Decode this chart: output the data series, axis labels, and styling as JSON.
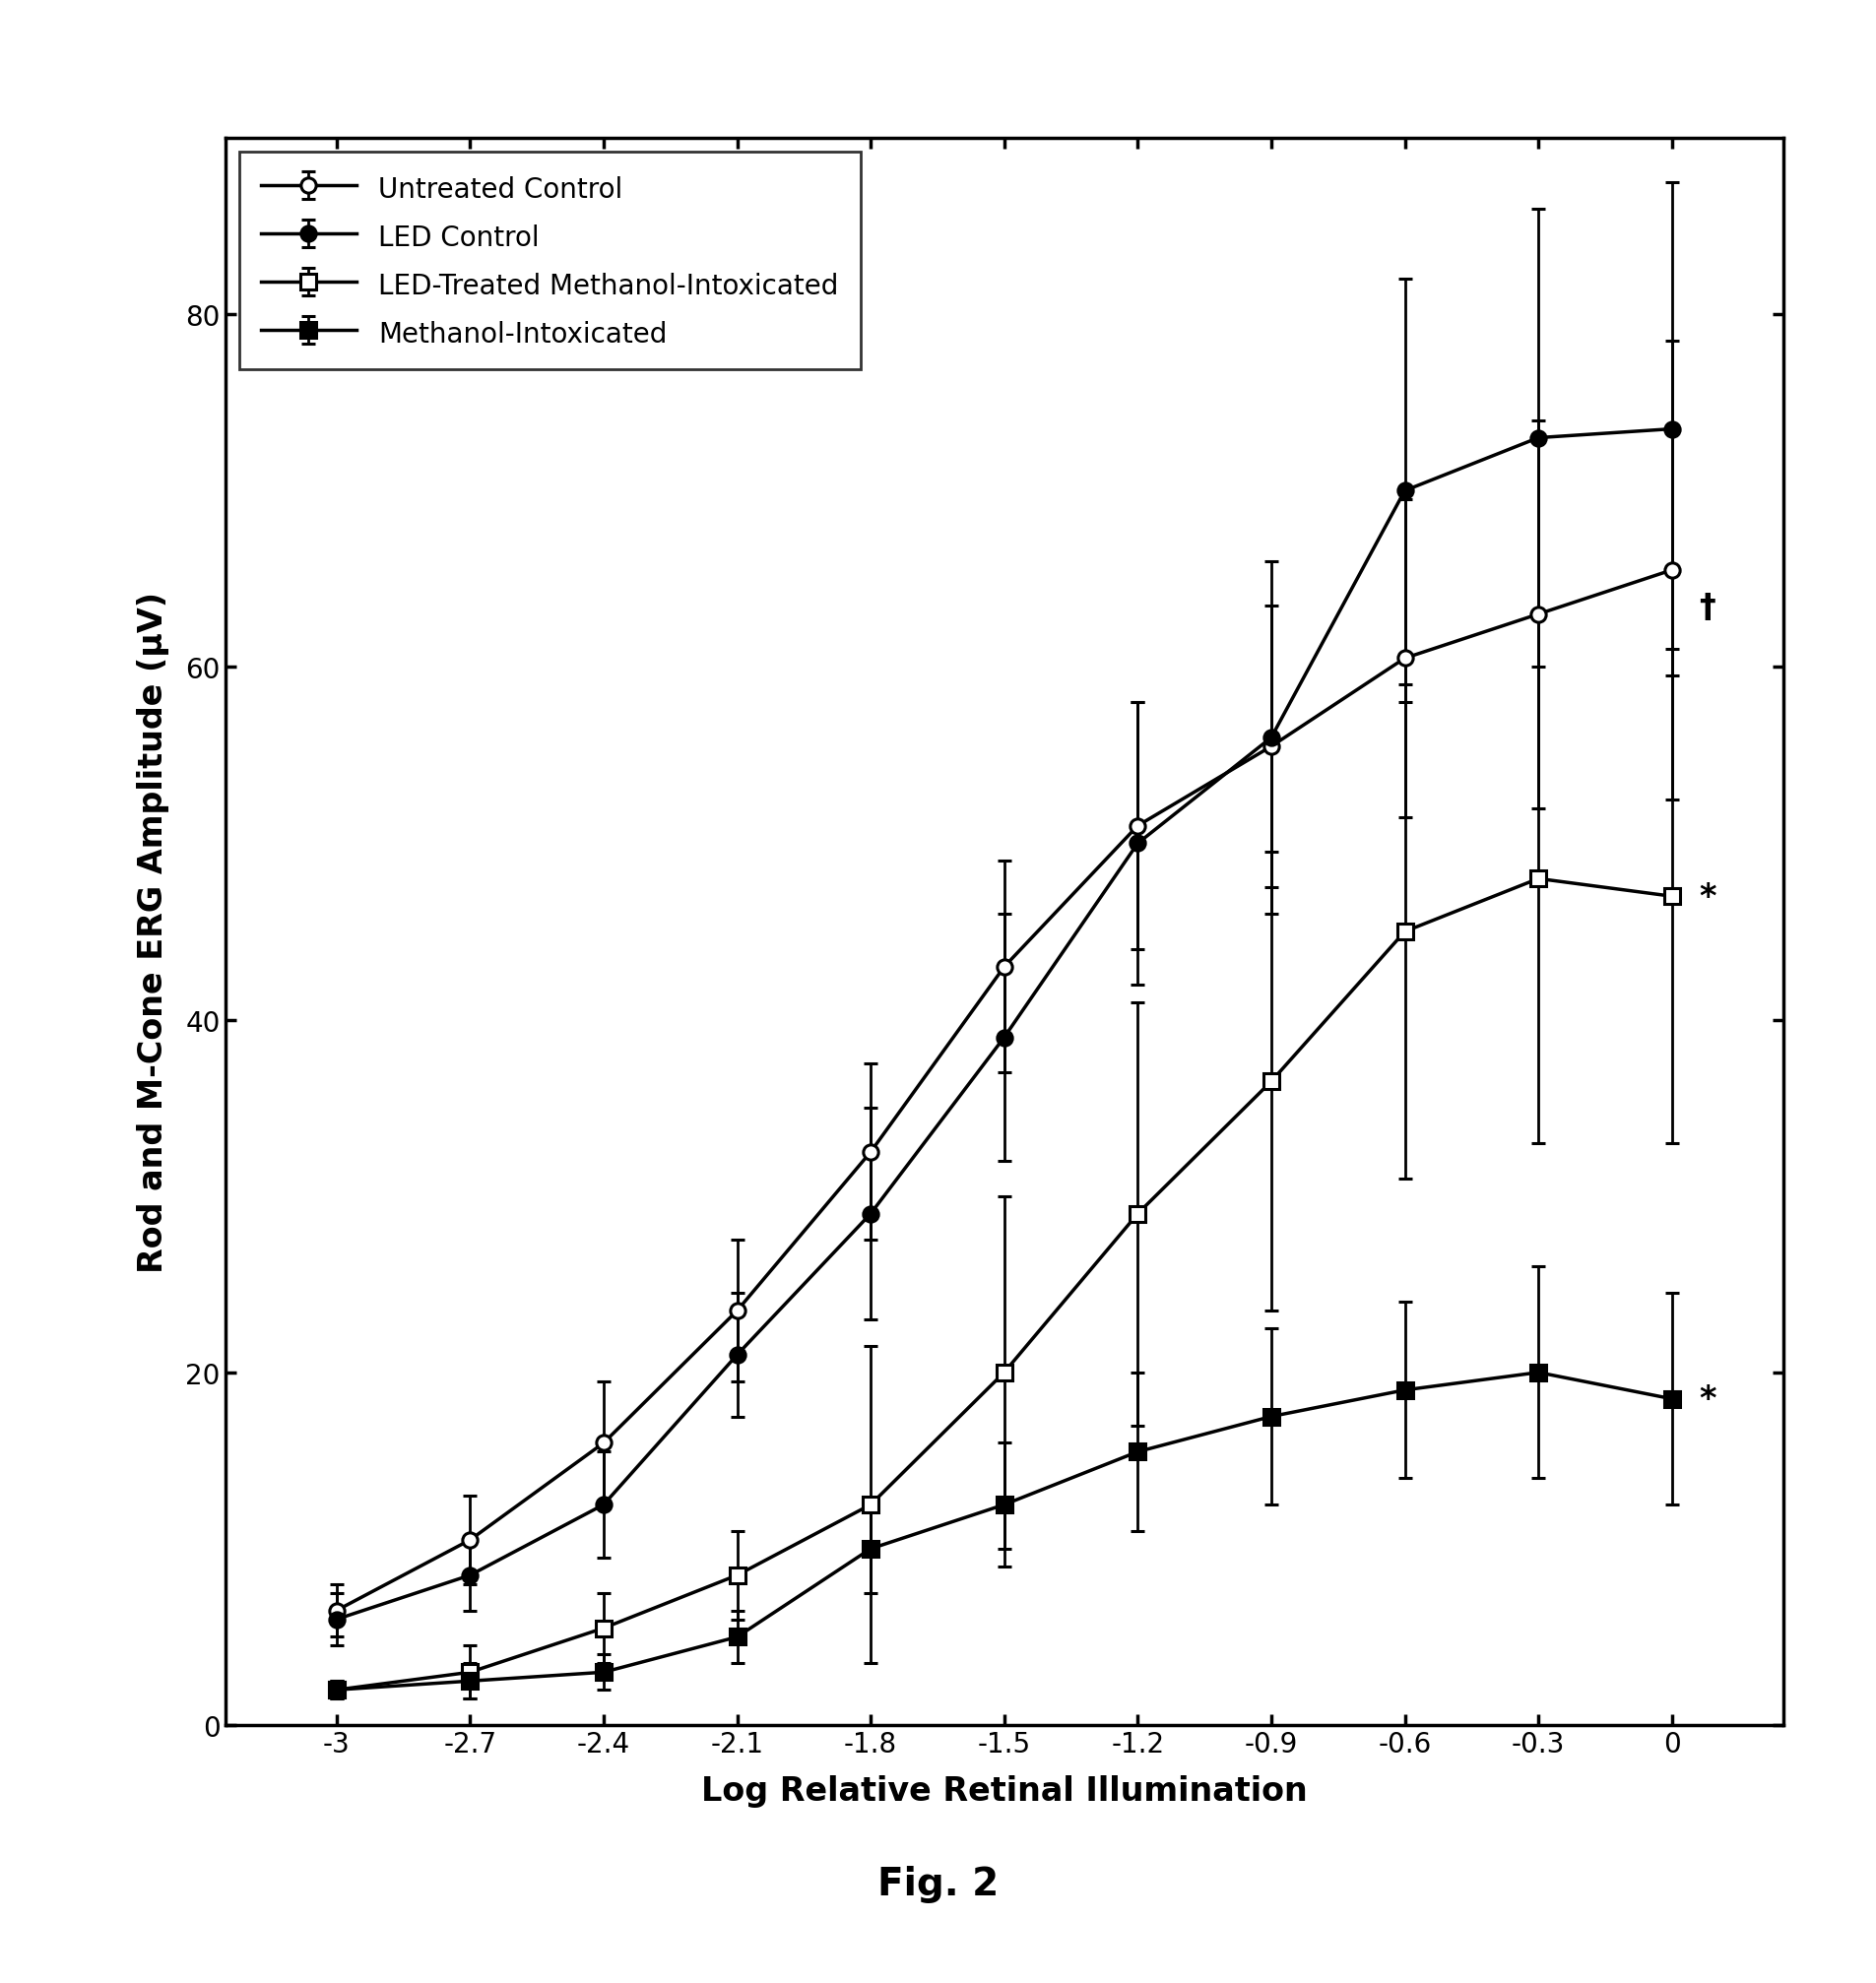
{
  "x": [
    -3,
    -2.7,
    -2.4,
    -2.1,
    -1.8,
    -1.5,
    -1.2,
    -0.9,
    -0.6,
    -0.3,
    0
  ],
  "untreated_control": {
    "y": [
      6.5,
      10.5,
      16,
      23.5,
      32.5,
      43,
      51,
      55.5,
      60.5,
      63,
      65.5
    ],
    "yerr": [
      1.5,
      2.5,
      3.5,
      4,
      5,
      6,
      7,
      8,
      9,
      11,
      13
    ],
    "label": "Untreated Control",
    "marker": "o",
    "fillstyle": "none"
  },
  "led_control": {
    "y": [
      6.0,
      8.5,
      12.5,
      21,
      29,
      39,
      50,
      56,
      70,
      73,
      73.5
    ],
    "yerr": [
      1.5,
      2.0,
      3.0,
      3.5,
      6,
      7,
      8,
      10,
      12,
      13,
      14
    ],
    "label": "LED Control",
    "marker": "o",
    "fillstyle": "full"
  },
  "led_treated_methanol": {
    "y": [
      2.0,
      3.0,
      5.5,
      8.5,
      12.5,
      20,
      29,
      36.5,
      45,
      48,
      47
    ],
    "yerr": [
      0.5,
      1.5,
      2.0,
      2.5,
      9,
      10,
      12,
      13,
      14,
      15,
      14
    ],
    "label": "LED-Treated Methanol-Intoxicated",
    "marker": "s",
    "fillstyle": "none"
  },
  "methanol_intoxicated": {
    "y": [
      2.0,
      2.5,
      3.0,
      5.0,
      10,
      12.5,
      15.5,
      17.5,
      19,
      20,
      18.5
    ],
    "yerr": [
      0.5,
      1.0,
      1.0,
      1.5,
      2.5,
      3.5,
      4.5,
      5,
      5,
      6,
      6
    ],
    "label": "Methanol-Intoxicated",
    "marker": "s",
    "fillstyle": "full"
  },
  "xlabel": "Log Relative Retinal Illumination",
  "ylabel": "Rod and M-Cone ERG Amplitude (μV)",
  "ylim": [
    0,
    90
  ],
  "yticks": [
    0,
    20,
    40,
    60,
    80
  ],
  "xtick_labels": [
    "-3",
    "-2.7",
    "-2.4",
    "-2.1",
    "-1.8",
    "-1.5",
    "-1.2",
    "-0.9",
    "-0.6",
    "-0.3",
    "0"
  ],
  "fig_label": "Fig. 2",
  "annotation_dagger": "†",
  "annotation_star": "*",
  "series_order": [
    "untreated_control",
    "led_control",
    "led_treated_methanol",
    "methanol_intoxicated"
  ]
}
